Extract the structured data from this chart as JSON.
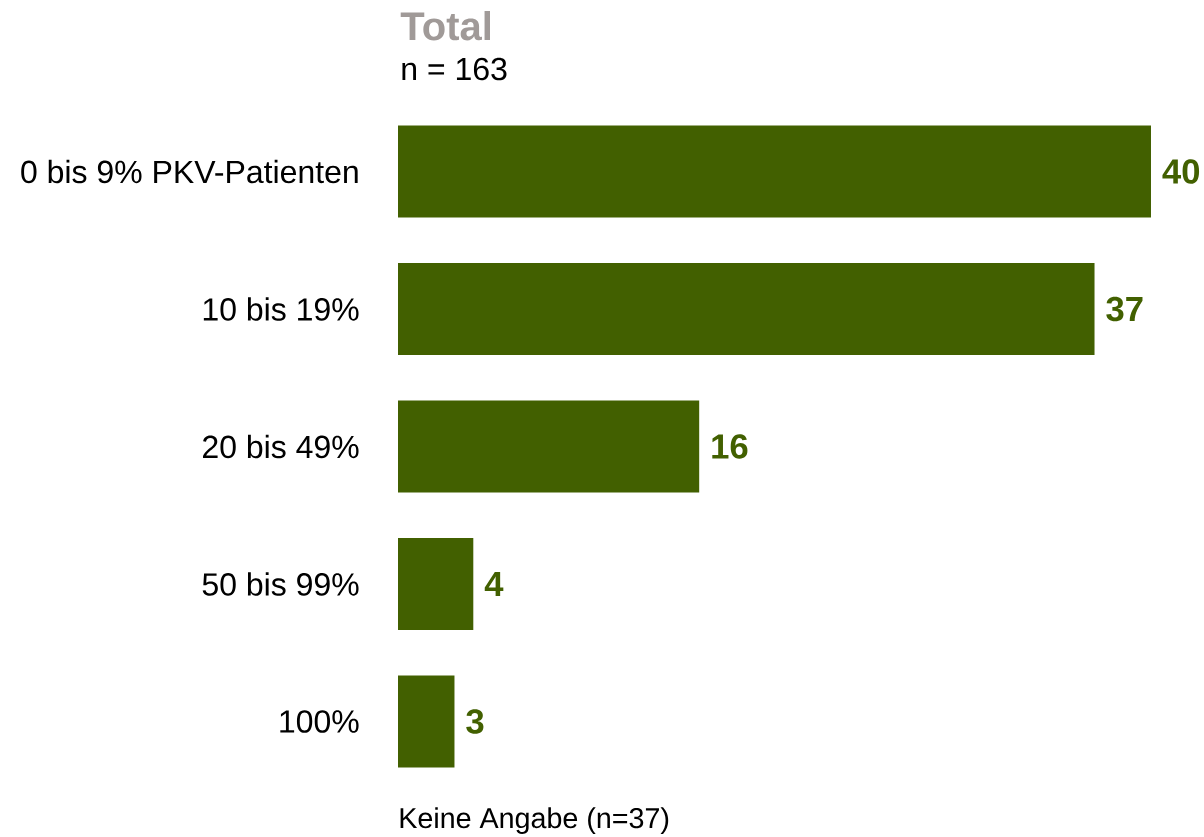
{
  "chart_data": {
    "type": "bar",
    "orientation": "horizontal",
    "title": "Total",
    "subtitle": "n = 163",
    "categories": [
      "0 bis 9% PKV-Patienten",
      "10 bis 19%",
      "20 bis 49%",
      "50 bis 99%",
      "100%"
    ],
    "values": [
      40,
      37,
      16,
      4,
      3
    ],
    "color": "#426000",
    "data_labels": true,
    "tick_labels": "y",
    "annotations": [
      "Keine Angabe (n=37)"
    ]
  }
}
